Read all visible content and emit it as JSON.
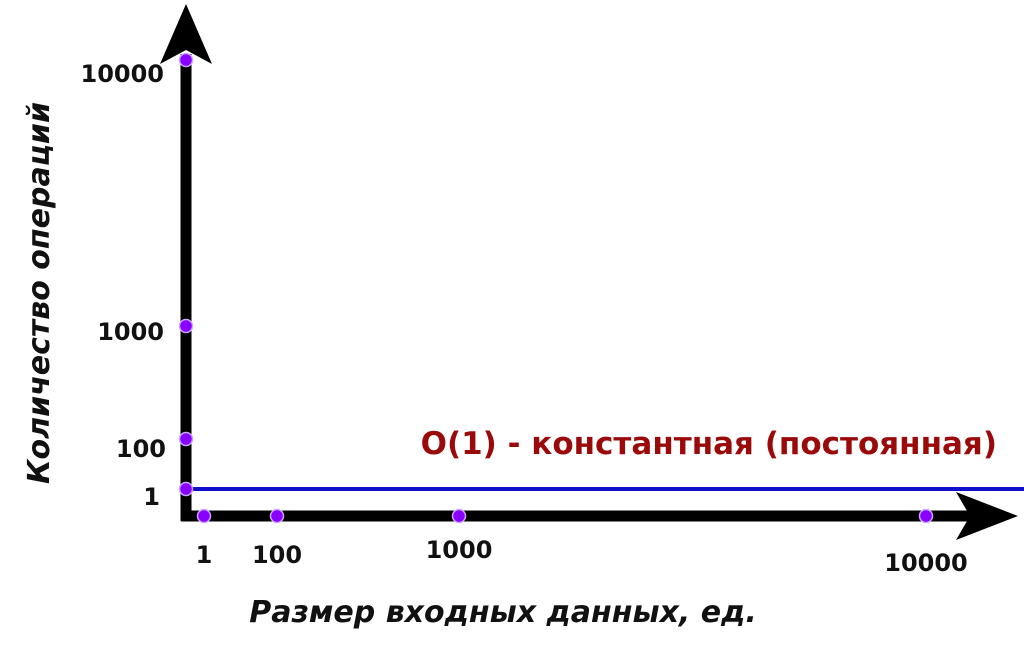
{
  "chart_data": {
    "type": "line",
    "xlabel": "Размер входных данных, ед.",
    "ylabel": "Количество операций",
    "x_ticks": [
      {
        "value": 1,
        "label": "1"
      },
      {
        "value": 100,
        "label": "100"
      },
      {
        "value": 1000,
        "label": "1000"
      },
      {
        "value": 10000,
        "label": "10000"
      }
    ],
    "y_ticks": [
      {
        "value": 1,
        "label": "1"
      },
      {
        "value": 100,
        "label": "100"
      },
      {
        "value": 1000,
        "label": "1000"
      },
      {
        "value": 10000,
        "label": "10000"
      }
    ],
    "series": [
      {
        "name": "O(1) - константная (постоянная)",
        "x": [
          1,
          10000
        ],
        "y": [
          1,
          1
        ],
        "color": "#1010cc"
      }
    ],
    "grid": false,
    "legend": "none"
  },
  "colors": {
    "axis": "#000000",
    "marker": "#8a00ff",
    "marker_outline": "#c9a6ff",
    "series_line": "#1010cc",
    "series_label": "#9b0a0a",
    "text": "#111111"
  }
}
